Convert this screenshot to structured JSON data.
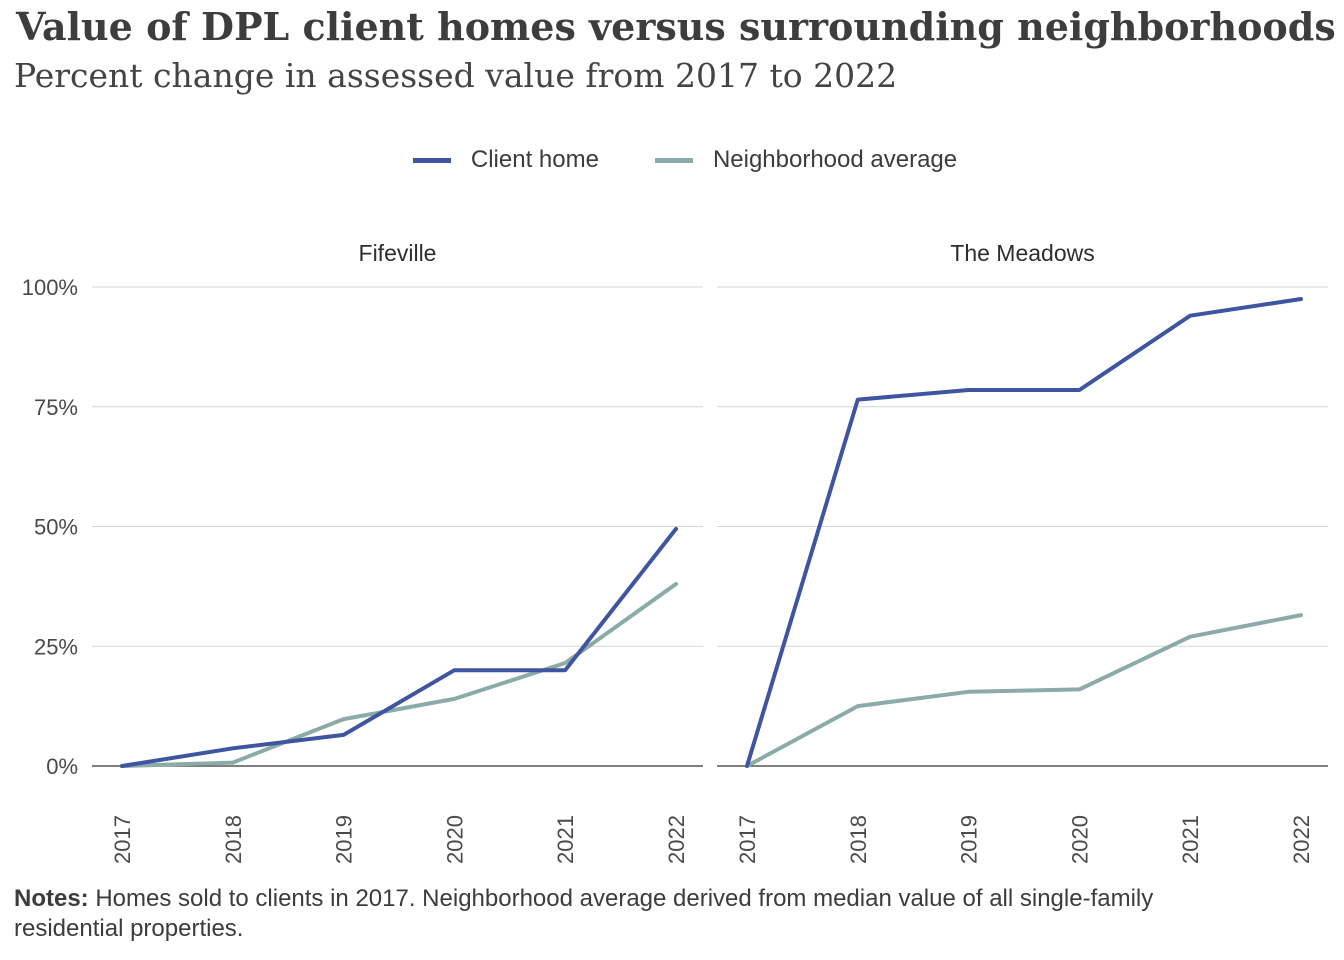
{
  "title": "Value of DPL client homes versus surrounding neighborhoods",
  "subtitle": "Percent change in assessed value from 2017 to 2022",
  "notes": {
    "label": "Notes:",
    "text": " Homes sold to clients in 2017. Neighborhood average derived from median value of all single-family residential properties."
  },
  "colors": {
    "client": "#3f55a1",
    "neighborhood": "#8aaba6",
    "grid": "#d5d5d5",
    "axis": "#555555"
  },
  "chart_data": {
    "type": "line",
    "legend_position": "top",
    "y_tick_labels": [
      "0%",
      "25%",
      "50%",
      "75%",
      "100%"
    ],
    "ylim": [
      0,
      100
    ],
    "series_names": [
      "Client home",
      "Neighborhood average"
    ],
    "panels": [
      {
        "title": "Fifeville",
        "x": [
          "2017",
          "2018",
          "2019",
          "2020",
          "2021",
          "2022"
        ],
        "series": [
          {
            "name": "Client home",
            "values": [
              0,
              3.7,
              6.5,
              20,
              20,
              49.5
            ]
          },
          {
            "name": "Neighborhood average",
            "values": [
              0,
              0.7,
              9.8,
              14,
              21.5,
              38
            ]
          }
        ]
      },
      {
        "title": "The Meadows",
        "x": [
          "2017",
          "2018",
          "2019",
          "2020",
          "2021",
          "2022"
        ],
        "series": [
          {
            "name": "Client home",
            "values": [
              0,
              76.5,
              78.5,
              78.5,
              94,
              97.5
            ]
          },
          {
            "name": "Neighborhood average",
            "values": [
              0,
              12.5,
              15.5,
              16,
              27,
              31.5
            ]
          }
        ]
      }
    ]
  }
}
